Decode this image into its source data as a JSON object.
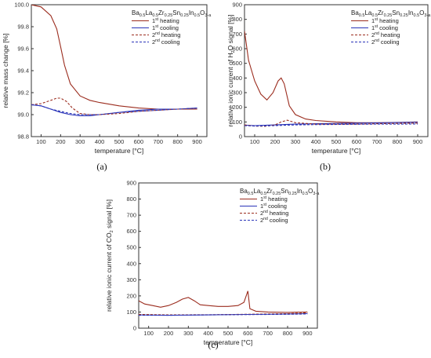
{
  "colors": {
    "heating1": "#9B2C1E",
    "cooling1": "#2A34B8",
    "heating2": "#9B2C1E",
    "cooling2": "#2A34B8",
    "axis": "#333333",
    "background": "#ffffff"
  },
  "legend": {
    "title": "Ba0.5La0.5Zr0.25Sn0.25In0.5O3-a",
    "items": [
      {
        "label": "1st heating",
        "style": "solid",
        "colorKey": "heating1"
      },
      {
        "label": "1st cooling",
        "style": "solid",
        "colorKey": "cooling1"
      },
      {
        "label": "2nd heating",
        "style": "dash",
        "colorKey": "heating2"
      },
      {
        "label": "2nd cooling",
        "style": "dash",
        "colorKey": "cooling2"
      }
    ]
  },
  "chart_data": [
    {
      "panel": "(a)",
      "type": "line",
      "xlabel": "temperature [°C]",
      "ylabel": "relative mass change [%]",
      "xlim": [
        50,
        950
      ],
      "ylim": [
        98.8,
        100.0
      ],
      "xticks": [
        100,
        200,
        300,
        400,
        500,
        600,
        700,
        800,
        900
      ],
      "yticks": [
        98.8,
        99.0,
        99.2,
        99.4,
        99.6,
        99.8,
        100.0
      ],
      "ytick_labels": [
        "98.8",
        "99.0",
        "99.2",
        "99.4",
        "99.6",
        "99.8",
        "100.0"
      ],
      "series": [
        {
          "name": "1st heating",
          "x": [
            50,
            100,
            150,
            180,
            200,
            220,
            250,
            300,
            350,
            400,
            500,
            600,
            700,
            800,
            900
          ],
          "y": [
            100.0,
            99.98,
            99.9,
            99.78,
            99.62,
            99.45,
            99.28,
            99.17,
            99.13,
            99.11,
            99.08,
            99.06,
            99.05,
            99.05,
            99.05
          ]
        },
        {
          "name": "1st cooling",
          "x": [
            50,
            100,
            150,
            200,
            250,
            300,
            350,
            400,
            500,
            600,
            700,
            800,
            900
          ],
          "y": [
            99.09,
            99.08,
            99.05,
            99.02,
            99.0,
            98.99,
            98.99,
            99.0,
            99.02,
            99.04,
            99.05,
            99.05,
            99.06
          ]
        },
        {
          "name": "2nd heating",
          "x": [
            50,
            100,
            150,
            180,
            200,
            230,
            260,
            300,
            350,
            400,
            500,
            600,
            700,
            800,
            900
          ],
          "y": [
            99.09,
            99.1,
            99.13,
            99.15,
            99.15,
            99.12,
            99.06,
            99.01,
            99.0,
            99.0,
            99.01,
            99.03,
            99.04,
            99.05,
            99.05
          ]
        },
        {
          "name": "2nd cooling",
          "x": [
            50,
            100,
            150,
            200,
            250,
            300,
            350,
            400,
            500,
            600,
            700,
            800,
            900
          ],
          "y": [
            99.09,
            99.08,
            99.05,
            99.03,
            99.01,
            99.0,
            99.0,
            99.0,
            99.02,
            99.03,
            99.04,
            99.05,
            99.06
          ]
        }
      ]
    },
    {
      "panel": "(b)",
      "type": "line",
      "xlabel": "temperature [°C]",
      "ylabel": "relative ionic current of H2O signal [%]",
      "xlim": [
        50,
        950
      ],
      "ylim": [
        0,
        900
      ],
      "xticks": [
        100,
        200,
        300,
        400,
        500,
        600,
        700,
        800,
        900
      ],
      "yticks": [
        0,
        100,
        200,
        300,
        400,
        500,
        600,
        700,
        800,
        900
      ],
      "ytick_labels": [
        "0",
        "100",
        "200",
        "300",
        "400",
        "500",
        "600",
        "700",
        "800",
        "900"
      ],
      "series": [
        {
          "name": "1st heating",
          "x": [
            50,
            70,
            100,
            130,
            160,
            190,
            215,
            230,
            245,
            270,
            300,
            350,
            400,
            500,
            600,
            700,
            800,
            900
          ],
          "y": [
            720,
            520,
            380,
            290,
            250,
            300,
            380,
            400,
            360,
            210,
            150,
            120,
            110,
            100,
            95,
            95,
            97,
            100
          ]
        },
        {
          "name": "1st cooling",
          "x": [
            50,
            100,
            200,
            300,
            400,
            500,
            600,
            700,
            800,
            900
          ],
          "y": [
            78,
            75,
            80,
            85,
            88,
            90,
            92,
            94,
            96,
            98
          ]
        },
        {
          "name": "2nd heating",
          "x": [
            50,
            100,
            150,
            200,
            230,
            260,
            300,
            400,
            500,
            600,
            700,
            800,
            900
          ],
          "y": [
            80,
            72,
            70,
            80,
            100,
            112,
            95,
            85,
            85,
            85,
            88,
            90,
            92
          ]
        },
        {
          "name": "2nd cooling",
          "x": [
            50,
            100,
            200,
            300,
            400,
            500,
            600,
            700,
            800,
            900
          ],
          "y": [
            75,
            72,
            75,
            80,
            82,
            83,
            84,
            85,
            85,
            86
          ]
        }
      ]
    },
    {
      "panel": "(c)",
      "type": "line",
      "xlabel": "temperature [°C]",
      "ylabel": "relative ionic current of CO2 signal [%]",
      "xlim": [
        50,
        950
      ],
      "ylim": [
        0,
        900
      ],
      "xticks": [
        100,
        200,
        300,
        400,
        500,
        600,
        700,
        800,
        900
      ],
      "yticks": [
        0,
        100,
        200,
        300,
        400,
        500,
        600,
        700,
        800,
        900
      ],
      "ytick_labels": [
        "0",
        "100",
        "200",
        "300",
        "400",
        "500",
        "600",
        "700",
        "800",
        "900"
      ],
      "series": [
        {
          "name": "1st heating",
          "x": [
            50,
            80,
            120,
            160,
            200,
            240,
            270,
            300,
            330,
            360,
            400,
            450,
            500,
            550,
            580,
            600,
            610,
            640,
            700,
            800,
            900
          ],
          "y": [
            170,
            150,
            140,
            130,
            140,
            160,
            180,
            190,
            170,
            145,
            140,
            135,
            135,
            140,
            160,
            230,
            120,
            105,
            100,
            98,
            100
          ]
        },
        {
          "name": "1st cooling",
          "x": [
            50,
            200,
            400,
            600,
            800,
            900
          ],
          "y": [
            82,
            80,
            82,
            85,
            88,
            90
          ]
        },
        {
          "name": "2nd heating",
          "x": [
            50,
            200,
            400,
            600,
            800,
            900
          ],
          "y": [
            85,
            82,
            83,
            86,
            90,
            95
          ]
        },
        {
          "name": "2nd cooling",
          "x": [
            50,
            200,
            400,
            600,
            800,
            900
          ],
          "y": [
            80,
            80,
            82,
            84,
            86,
            88
          ]
        }
      ]
    }
  ]
}
